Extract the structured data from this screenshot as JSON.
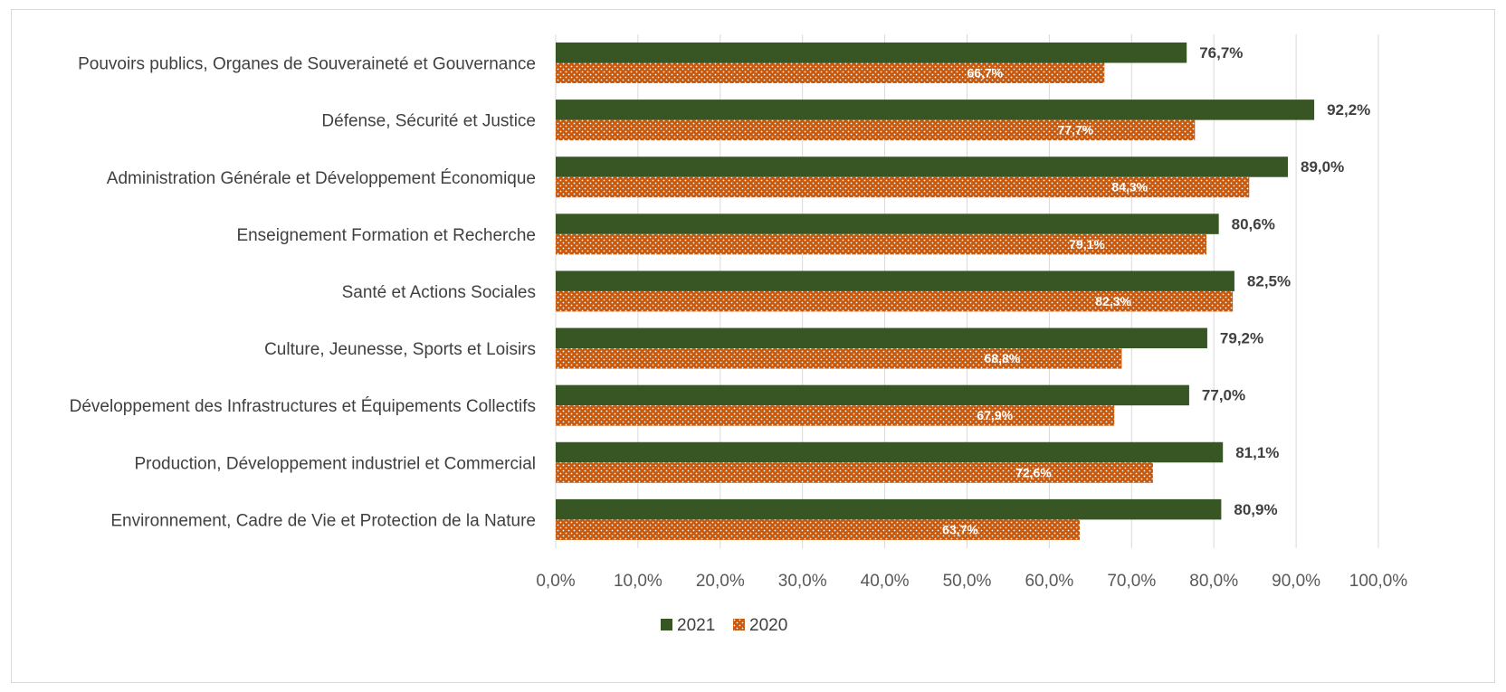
{
  "colors": {
    "series_2021": "#375623",
    "series_2020": "#C55A11",
    "grid": "#d9d9d9"
  },
  "chart_data": {
    "type": "bar",
    "orientation": "horizontal",
    "categories": [
      "Pouvoirs publics, Organes de Souveraineté et Gouvernance",
      "Défense, Sécurité et Justice",
      "Administration Générale et Développement Économique",
      "Enseignement Formation et Recherche",
      "Santé et Actions Sociales",
      "Culture, Jeunesse, Sports et Loisirs",
      "Développement des Infrastructures et Équipements Collectifs",
      "Production, Développement industriel et Commercial",
      "Environnement, Cadre de Vie et Protection de la Nature"
    ],
    "series": [
      {
        "name": "2021",
        "values": [
          76.7,
          92.2,
          89.0,
          80.6,
          82.5,
          79.2,
          77.0,
          81.1,
          80.9
        ],
        "labels": [
          "76,7%",
          "92,2%",
          "89,0%",
          "80,6%",
          "82,5%",
          "79,2%",
          "77,0%",
          "81,1%",
          "80,9%"
        ]
      },
      {
        "name": "2020",
        "values": [
          66.7,
          77.7,
          84.3,
          79.1,
          82.3,
          68.8,
          67.9,
          72.6,
          63.7
        ],
        "labels": [
          "66,7%",
          "77,7%",
          "84,3%",
          "79,1%",
          "82,3%",
          "68,8%",
          "67,9%",
          "72,6%",
          "63,7%"
        ]
      }
    ],
    "xlim": [
      0,
      100
    ],
    "x_ticks": [
      "0,0%",
      "10,0%",
      "20,0%",
      "30,0%",
      "40,0%",
      "50,0%",
      "60,0%",
      "70,0%",
      "80,0%",
      "90,0%",
      "100,0%"
    ],
    "grid": true,
    "legend_position": "bottom"
  }
}
